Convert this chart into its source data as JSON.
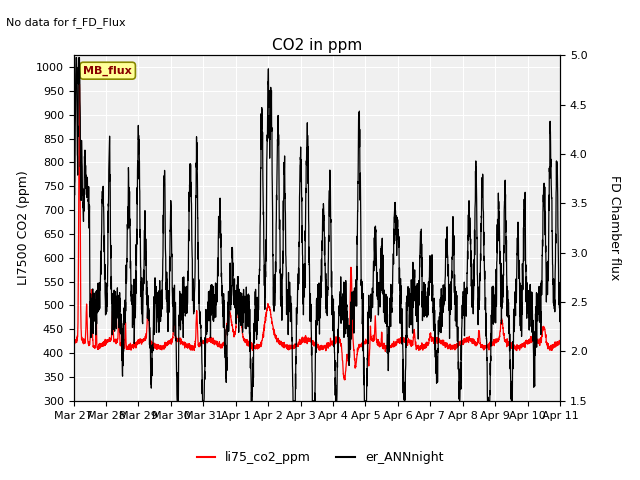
{
  "title": "CO2 in ppm",
  "suptitle": "No data for f_FD_Flux",
  "ylabel_left": "LI7500 CO2 (ppm)",
  "ylabel_right": "FD Chamber flux",
  "ylim_left": [
    300,
    1025
  ],
  "ylim_right": [
    1.5,
    5.0
  ],
  "yticks_left": [
    300,
    350,
    400,
    450,
    500,
    550,
    600,
    650,
    700,
    750,
    800,
    850,
    900,
    950,
    1000
  ],
  "yticks_right": [
    1.5,
    2.0,
    2.5,
    3.0,
    3.5,
    4.0,
    4.5,
    5.0
  ],
  "xtick_labels": [
    "Mar 27",
    "Mar 28",
    "Mar 29",
    "Mar 30",
    "Mar 31",
    "Apr 1",
    "Apr 2",
    "Apr 3",
    "Apr 4",
    "Apr 5",
    "Apr 6",
    "Apr 7",
    "Apr 8",
    "Apr 9",
    "Apr 10",
    "Apr 11"
  ],
  "legend_labels": [
    "li75_co2_ppm",
    "er_ANNnight"
  ],
  "line1_color": "red",
  "line2_color": "black",
  "grid_color": "#d0d0d0",
  "mb_flux_bg": "#ffff99",
  "mb_flux_border": "#888800",
  "mb_flux_text": "#880000",
  "n_points": 3000
}
